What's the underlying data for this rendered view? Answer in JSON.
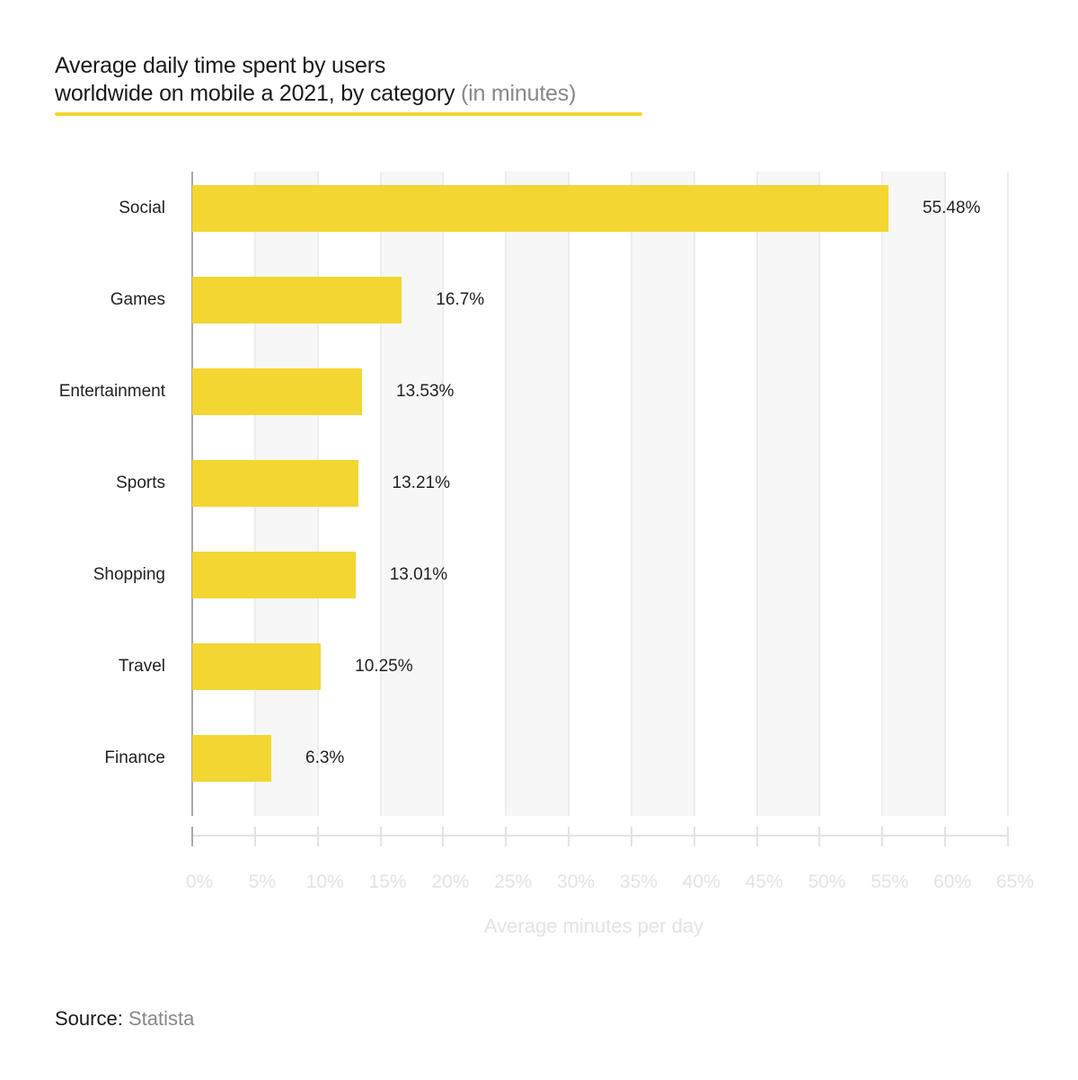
{
  "title": {
    "line1": "Average daily time spent by users",
    "line2": "worldwide on mobile a 2021, by category",
    "unit": "(in minutes)"
  },
  "colors": {
    "bar": "#f3d631",
    "stripe": "#f7f7f7",
    "gridline": "#ececec",
    "axis_text": "#e3e3e3",
    "underline": "#f3d631"
  },
  "chart_data": {
    "type": "bar",
    "orientation": "horizontal",
    "title": "Average daily time spent by users worldwide on mobile a 2021, by category (in minutes)",
    "xlabel": "Average minutes per day",
    "ylabel": "",
    "categories": [
      "Social",
      "Games",
      "Entertainment",
      "Sports",
      "Shopping",
      "Travel",
      "Finance"
    ],
    "values": [
      55.48,
      16.7,
      13.53,
      13.21,
      13.01,
      10.25,
      6.3
    ],
    "value_labels": [
      "55.48%",
      "16.7%",
      "13.53%",
      "13.21%",
      "13.01%",
      "10.25%",
      "6.3%"
    ],
    "xlim": [
      0,
      65
    ],
    "xticks": [
      "0%",
      "5%",
      "10%",
      "15%",
      "20%",
      "25%",
      "30%",
      "35%",
      "40%",
      "45%",
      "50%",
      "55%",
      "60%",
      "65%"
    ],
    "grid": true,
    "legend": null
  },
  "source": {
    "label": "Source:",
    "name": "Statista"
  }
}
